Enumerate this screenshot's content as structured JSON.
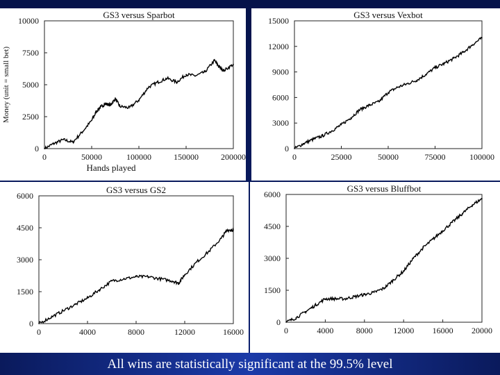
{
  "caption": "All wins are statistically significant at the 99.5% level",
  "colors": {
    "background": "#0a1a5c",
    "line": "#000000",
    "panel": "#ffffff"
  },
  "chart_data": [
    {
      "type": "line",
      "title": "GS3 versus Sparbot",
      "xlabel": "Hands played",
      "ylabel": "Money (unit = small bet)",
      "xlim": [
        0,
        200000
      ],
      "ylim": [
        0,
        10000
      ],
      "xticks": [
        "0",
        "50000",
        "100000",
        "150000",
        "200000"
      ],
      "yticks": [
        "0",
        "2500",
        "5000",
        "7500",
        "10000"
      ],
      "x": [
        0,
        10000,
        20000,
        30000,
        40000,
        50000,
        55000,
        60000,
        65000,
        70000,
        75000,
        80000,
        90000,
        100000,
        110000,
        120000,
        130000,
        140000,
        150000,
        160000,
        170000,
        180000,
        185000,
        190000,
        200000
      ],
      "y": [
        0,
        400,
        700,
        500,
        1300,
        2200,
        2900,
        3300,
        3500,
        3400,
        3900,
        3300,
        3200,
        3800,
        4800,
        5200,
        5500,
        5200,
        5800,
        5700,
        6000,
        6900,
        6400,
        6100,
        6600
      ]
    },
    {
      "type": "line",
      "title": "GS3 versus Vexbot",
      "xlabel": "",
      "ylabel": "",
      "xlim": [
        0,
        100000
      ],
      "ylim": [
        0,
        15000
      ],
      "xticks": [
        "0",
        "25000",
        "50000",
        "75000",
        "100000"
      ],
      "yticks": [
        "0",
        "3000",
        "6000",
        "9000",
        "12000",
        "15000"
      ],
      "x": [
        0,
        5000,
        10000,
        15000,
        20000,
        25000,
        30000,
        35000,
        40000,
        45000,
        50000,
        55000,
        60000,
        65000,
        70000,
        75000,
        80000,
        85000,
        90000,
        95000,
        100000
      ],
      "y": [
        0,
        600,
        1100,
        1500,
        2100,
        2800,
        3600,
        4600,
        5100,
        5500,
        6600,
        7200,
        7600,
        8000,
        8700,
        9500,
        10000,
        10600,
        11300,
        12200,
        13000
      ]
    },
    {
      "type": "line",
      "title": "GS3 versus GS2",
      "xlabel": "",
      "ylabel": "",
      "xlim": [
        0,
        16000
      ],
      "ylim": [
        0,
        6000
      ],
      "xticks": [
        "0",
        "4000",
        "8000",
        "12000",
        "16000"
      ],
      "yticks": [
        "0",
        "1500",
        "3000",
        "4500",
        "6000"
      ],
      "x": [
        0,
        1000,
        2000,
        3000,
        4000,
        5000,
        6000,
        7000,
        8000,
        9000,
        10000,
        11000,
        11500,
        12000,
        13000,
        14000,
        15000,
        15500,
        16000
      ],
      "y": [
        0,
        300,
        600,
        900,
        1200,
        1600,
        2000,
        2100,
        2200,
        2200,
        2100,
        2000,
        1900,
        2300,
        2900,
        3400,
        4000,
        4400,
        4400
      ]
    },
    {
      "type": "line",
      "title": "GS3 versus Bluffbot",
      "xlabel": "",
      "ylabel": "",
      "xlim": [
        0,
        20000
      ],
      "ylim": [
        0,
        6000
      ],
      "xticks": [
        "0",
        "4000",
        "8000",
        "12000",
        "16000",
        "20000"
      ],
      "yticks": [
        "0",
        "1500",
        "3000",
        "4500",
        "6000"
      ],
      "x": [
        0,
        1000,
        2000,
        3000,
        4000,
        5000,
        6000,
        7000,
        8000,
        9000,
        10000,
        11000,
        12000,
        13000,
        14000,
        15000,
        16000,
        17000,
        18000,
        19000,
        20000
      ],
      "y": [
        0,
        200,
        500,
        800,
        1100,
        1100,
        1100,
        1200,
        1300,
        1400,
        1600,
        2000,
        2400,
        3000,
        3500,
        3900,
        4300,
        4700,
        5100,
        5500,
        5800
      ]
    }
  ]
}
